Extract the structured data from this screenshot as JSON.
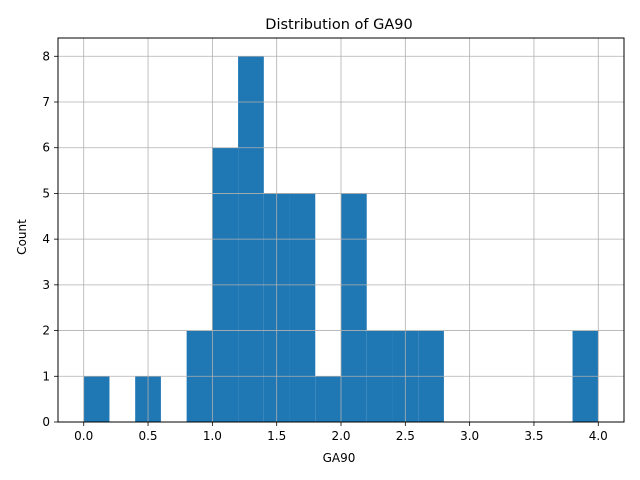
{
  "chart_data": {
    "type": "bar",
    "title": "Distribution of GA90",
    "xlabel": "GA90",
    "ylabel": "Count",
    "bin_edges": [
      0.0,
      0.2,
      0.4,
      0.6,
      0.8,
      1.0,
      1.2,
      1.4,
      1.6,
      1.8,
      2.0,
      2.2,
      2.4,
      2.6,
      2.8,
      3.0,
      3.2,
      3.4,
      3.6,
      3.8,
      4.0
    ],
    "values": [
      1,
      0,
      1,
      0,
      2,
      6,
      8,
      5,
      5,
      1,
      5,
      2,
      2,
      2,
      0,
      0,
      0,
      0,
      0,
      2
    ],
    "xlim": [
      -0.2,
      4.2
    ],
    "ylim": [
      0,
      8.4
    ],
    "xticks": [
      0.0,
      0.5,
      1.0,
      1.5,
      2.0,
      2.5,
      3.0,
      3.5,
      4.0
    ],
    "xtick_labels": [
      "0.0",
      "0.5",
      "1.0",
      "1.5",
      "2.0",
      "2.5",
      "3.0",
      "3.5",
      "4.0"
    ],
    "yticks": [
      0,
      1,
      2,
      3,
      4,
      5,
      6,
      7,
      8
    ],
    "ytick_labels": [
      "0",
      "1",
      "2",
      "3",
      "4",
      "5",
      "6",
      "7",
      "8"
    ],
    "grid": true,
    "bar_color": "#1f77b4",
    "grid_color": "#b0b0b0"
  }
}
